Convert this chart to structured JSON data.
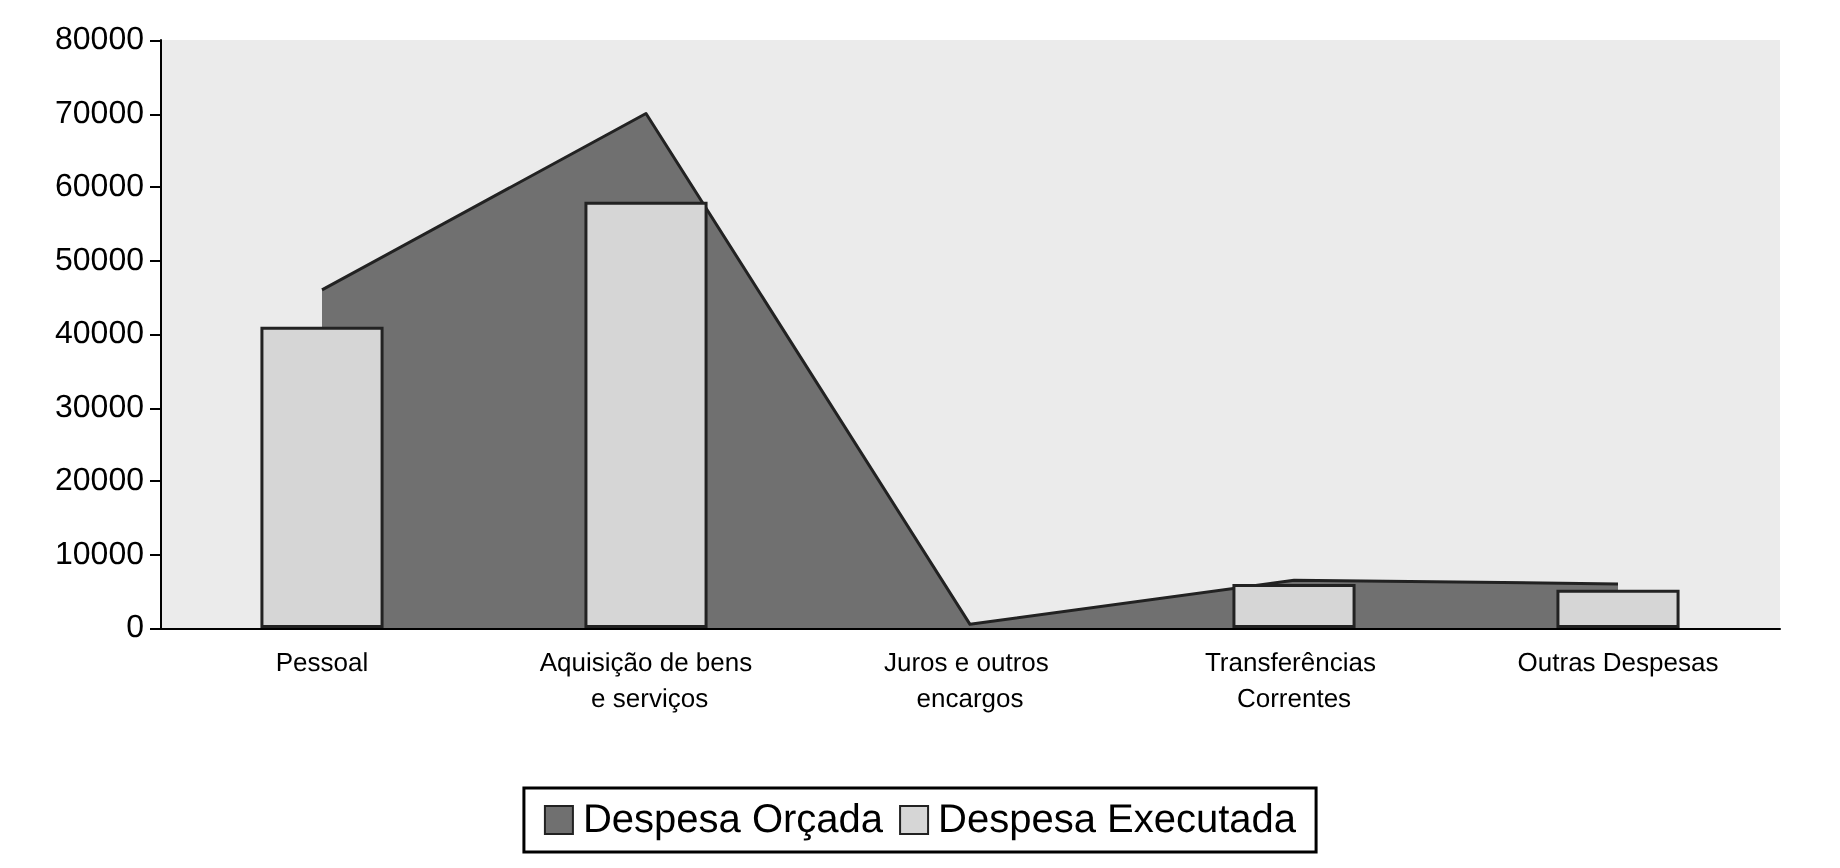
{
  "chart_data": {
    "type": "bar",
    "categories": [
      "Pessoal",
      "Aquisição de bens e serviços",
      "Juros e outros encargos",
      "Transferências Correntes",
      "Outras Despesas"
    ],
    "series": [
      {
        "name": "Despesa Orçada",
        "type": "area",
        "color": "#707070",
        "values": [
          46000,
          70000,
          500,
          6500,
          6000
        ]
      },
      {
        "name": "Despesa Executada",
        "type": "bar",
        "color": "#d6d6d6",
        "values": [
          41000,
          58000,
          null,
          6000,
          5200
        ]
      }
    ],
    "ylim": [
      0,
      80000
    ],
    "yticks": [
      0,
      10000,
      20000,
      30000,
      40000,
      50000,
      60000,
      70000,
      80000
    ],
    "grid": false,
    "legend": "bottom"
  }
}
